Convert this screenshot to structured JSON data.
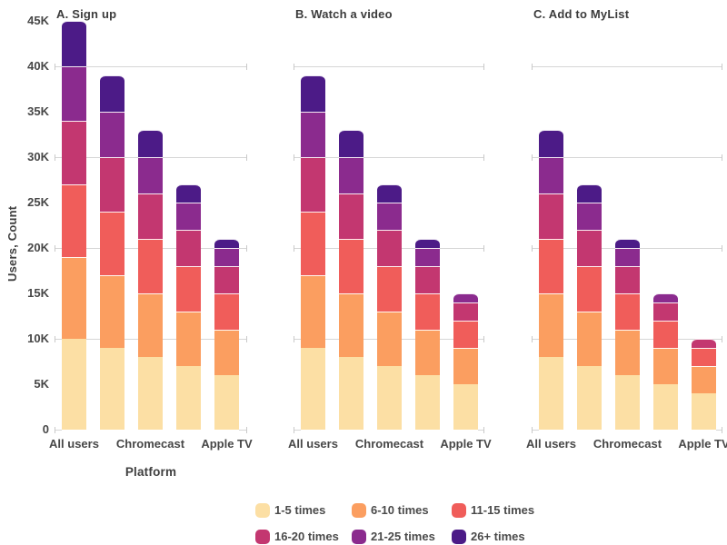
{
  "ui": {
    "background": "#ffffff",
    "text_color": "#3f3f3f",
    "grid_color": "#d6d6d6"
  },
  "chart_data": {
    "type": "bar",
    "stacked": true,
    "units": "thousands of users (1 = 1K)",
    "ylabel": "Users, Count",
    "xlabel": "Platform",
    "ylim": [
      0,
      45000
    ],
    "ytick_labels": [
      "0",
      "5K",
      "10K",
      "15K",
      "20K",
      "25K",
      "30K",
      "35K",
      "40K",
      "45K"
    ],
    "gridlines_k": [
      10,
      20,
      30,
      40
    ],
    "n_bars_per_facet": 5,
    "x_tick_labels": [
      "All users",
      "Chromecast",
      "Apple TV"
    ],
    "x_tick_bar_indices": [
      0,
      2,
      4
    ],
    "legend_position": "bottom",
    "legend": [
      {
        "label": "1-5 times",
        "color": "#fcdfa4"
      },
      {
        "label": "6-10 times",
        "color": "#fb9e60"
      },
      {
        "label": "11-15 times",
        "color": "#f05d5a"
      },
      {
        "label": "16-20 times",
        "color": "#c33770"
      },
      {
        "label": "21-25 times",
        "color": "#8b2b8e"
      },
      {
        "label": "26+ times",
        "color": "#4c1b87"
      }
    ],
    "facets": [
      {
        "label": "A. Sign up",
        "bar_totals_k": [
          45,
          39,
          33,
          27,
          21
        ],
        "series": [
          {
            "name": "1-5 times",
            "values_k": [
              10,
              9,
              8,
              7,
              6
            ]
          },
          {
            "name": "6-10 times",
            "values_k": [
              9,
              8,
              7,
              6,
              5
            ]
          },
          {
            "name": "11-15 times",
            "values_k": [
              8,
              7,
              6,
              5,
              4
            ]
          },
          {
            "name": "16-20 times",
            "values_k": [
              7,
              6,
              5,
              4,
              3
            ]
          },
          {
            "name": "21-25 times",
            "values_k": [
              6,
              5,
              4,
              3,
              2
            ]
          },
          {
            "name": "26+ times",
            "values_k": [
              5,
              4,
              3,
              2,
              1
            ]
          }
        ]
      },
      {
        "label": "B. Watch a video",
        "bar_totals_k": [
          39,
          33,
          27,
          21,
          15
        ],
        "series": [
          {
            "name": "1-5 times",
            "values_k": [
              9,
              8,
              7,
              6,
              5
            ]
          },
          {
            "name": "6-10 times",
            "values_k": [
              8,
              7,
              6,
              5,
              4
            ]
          },
          {
            "name": "11-15 times",
            "values_k": [
              7,
              6,
              5,
              4,
              3
            ]
          },
          {
            "name": "16-20 times",
            "values_k": [
              6,
              5,
              4,
              3,
              2
            ]
          },
          {
            "name": "21-25 times",
            "values_k": [
              5,
              4,
              3,
              2,
              1
            ]
          },
          {
            "name": "26+ times",
            "values_k": [
              4,
              3,
              2,
              1,
              0
            ]
          }
        ]
      },
      {
        "label": "C. Add to MyList",
        "bar_totals_k": [
          33,
          27,
          21,
          15,
          10
        ],
        "series": [
          {
            "name": "1-5 times",
            "values_k": [
              8,
              7,
              6,
              5,
              4
            ]
          },
          {
            "name": "6-10 times",
            "values_k": [
              7,
              6,
              5,
              4,
              3
            ]
          },
          {
            "name": "11-15 times",
            "values_k": [
              6,
              5,
              4,
              3,
              2
            ]
          },
          {
            "name": "16-20 times",
            "values_k": [
              5,
              4,
              3,
              2,
              1
            ]
          },
          {
            "name": "21-25 times",
            "values_k": [
              4,
              3,
              2,
              1,
              0
            ]
          },
          {
            "name": "26+ times",
            "values_k": [
              3,
              2,
              1,
              0,
              0
            ]
          }
        ]
      }
    ]
  }
}
